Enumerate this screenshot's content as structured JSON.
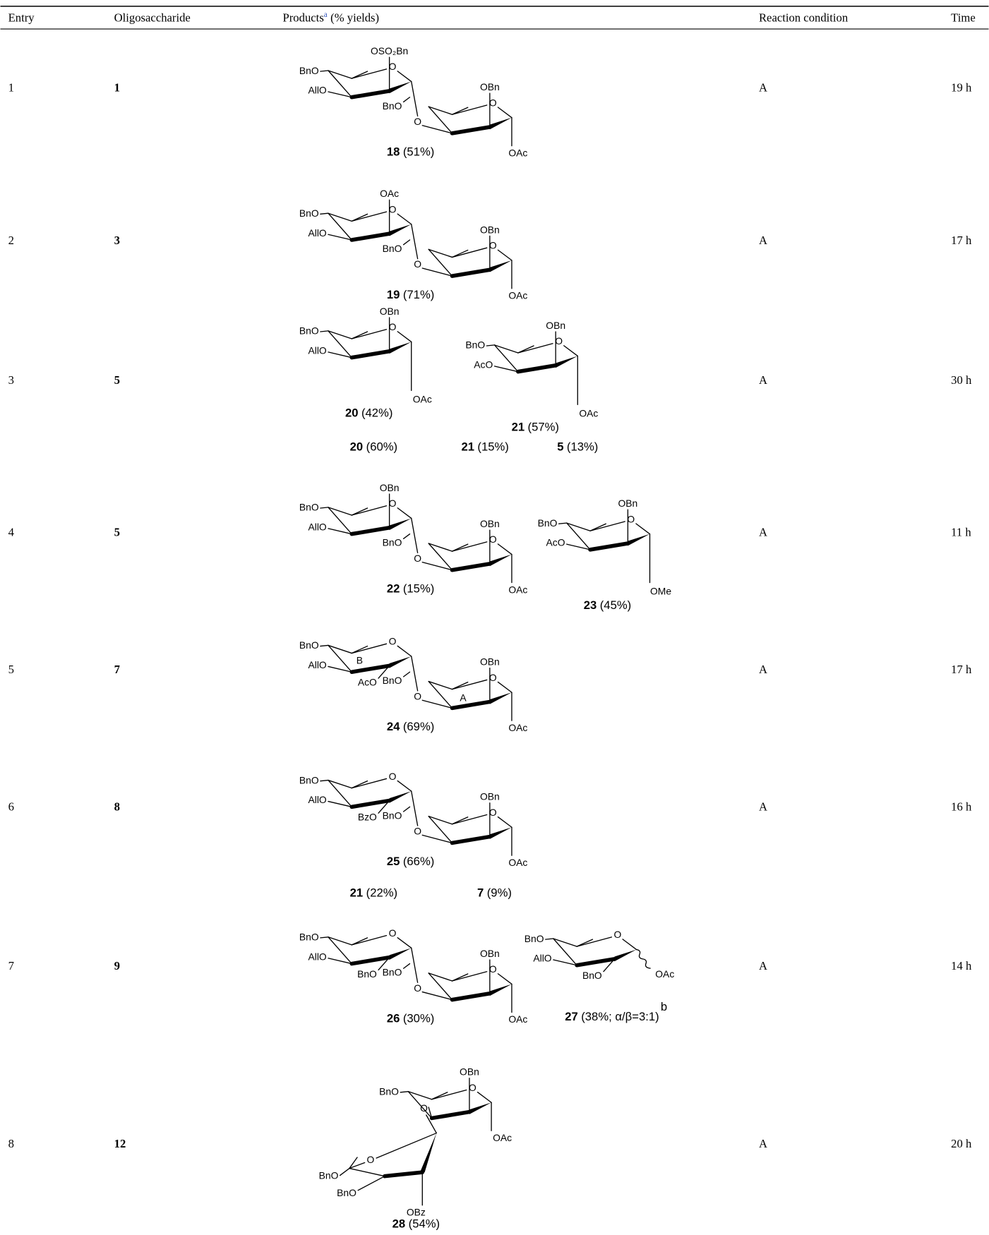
{
  "table": {
    "headers": {
      "entry": "Entry",
      "oligosaccharide": "Oligosaccharide",
      "products": "Products",
      "products_note": "a",
      "products_unit": "(% yields)",
      "condition": "Reaction condition",
      "time": "Time"
    },
    "rows": [
      {
        "entry": "1",
        "oligosaccharide": "1",
        "condition": "A",
        "time": "19 h",
        "products": [
          {
            "labels": [
              "OSO₂Bn",
              "O",
              "BnO",
              "AllO",
              "OBn",
              "O",
              "BnO",
              "O",
              "OAc"
            ],
            "compound": "18",
            "yield": "(51%)"
          }
        ]
      },
      {
        "entry": "2",
        "oligosaccharide": "3",
        "condition": "A",
        "time": "17 h",
        "products": [
          {
            "labels": [
              "OAc",
              "O",
              "BnO",
              "AllO",
              "OBn",
              "O",
              "BnO",
              "O",
              "OAc"
            ],
            "compound": "19",
            "yield": "(71%)"
          }
        ]
      },
      {
        "entry": "3",
        "oligosaccharide": "5",
        "condition": "A",
        "time": "30 h",
        "products": [
          {
            "labels": [
              "OBn",
              "O",
              "BnO",
              "AllO",
              "OAc"
            ],
            "compound": "20",
            "yield": "(42%)"
          },
          {
            "labels": [
              "OBn",
              "O",
              "BnO",
              "AcO",
              "OAc"
            ],
            "compound": "21",
            "yield": "(57%)"
          }
        ],
        "also": [
          {
            "compound": "20",
            "yield": "(60%)"
          },
          {
            "compound": "21",
            "yield": "(15%)"
          },
          {
            "compound": "5",
            "yield": "(13%)"
          }
        ]
      },
      {
        "entry": "4",
        "oligosaccharide": "5",
        "condition": "A",
        "time": "11 h",
        "products": [
          {
            "labels": [
              "OBn",
              "O",
              "BnO",
              "AllO",
              "OBn",
              "O",
              "BnO",
              "O",
              "OAc"
            ],
            "compound": "22",
            "yield": "(15%)"
          },
          {
            "labels": [
              "OBn",
              "O",
              "BnO",
              "AcO",
              "OMe"
            ],
            "compound": "23",
            "yield": "(45%)"
          }
        ]
      },
      {
        "entry": "5",
        "oligosaccharide": "7",
        "condition": "A",
        "time": "17 h",
        "products": [
          {
            "labels": [
              "O",
              "BnO",
              "AllO",
              "AcO",
              "B",
              "OBn",
              "O",
              "BnO",
              "O",
              "OAc",
              "A"
            ],
            "compound": "24",
            "yield": "(69%)"
          }
        ]
      },
      {
        "entry": "6",
        "oligosaccharide": "8",
        "condition": "A",
        "time": "16 h",
        "products": [
          {
            "labels": [
              "O",
              "BnO",
              "AllO",
              "BzO",
              "OBn",
              "O",
              "BnO",
              "O",
              "OAc"
            ],
            "compound": "25",
            "yield": "(66%)"
          }
        ],
        "also": [
          {
            "compound": "21",
            "yield": "(22%)"
          },
          {
            "compound": "7",
            "yield": "(9%)"
          }
        ]
      },
      {
        "entry": "7",
        "oligosaccharide": "9",
        "condition": "A",
        "time": "14 h",
        "products": [
          {
            "labels": [
              "O",
              "BnO",
              "AllO",
              "BnO",
              "OBn",
              "O",
              "BnO",
              "O",
              "OAc"
            ],
            "compound": "26",
            "yield": "(30%)"
          },
          {
            "labels": [
              "O",
              "BnO",
              "AllO",
              "BnO",
              "OAc"
            ],
            "compound": "27",
            "yield": "(38%; α/β=3:1)",
            "note": "b"
          }
        ]
      },
      {
        "entry": "8",
        "oligosaccharide": "12",
        "condition": "A",
        "time": "20 h",
        "products": [
          {
            "labels": [
              "OBn",
              "O",
              "BnO",
              "O",
              "OAc",
              "O",
              "BnO",
              "BnO",
              "OBz"
            ],
            "compound": "28",
            "yield": "(54%)"
          }
        ]
      }
    ]
  }
}
